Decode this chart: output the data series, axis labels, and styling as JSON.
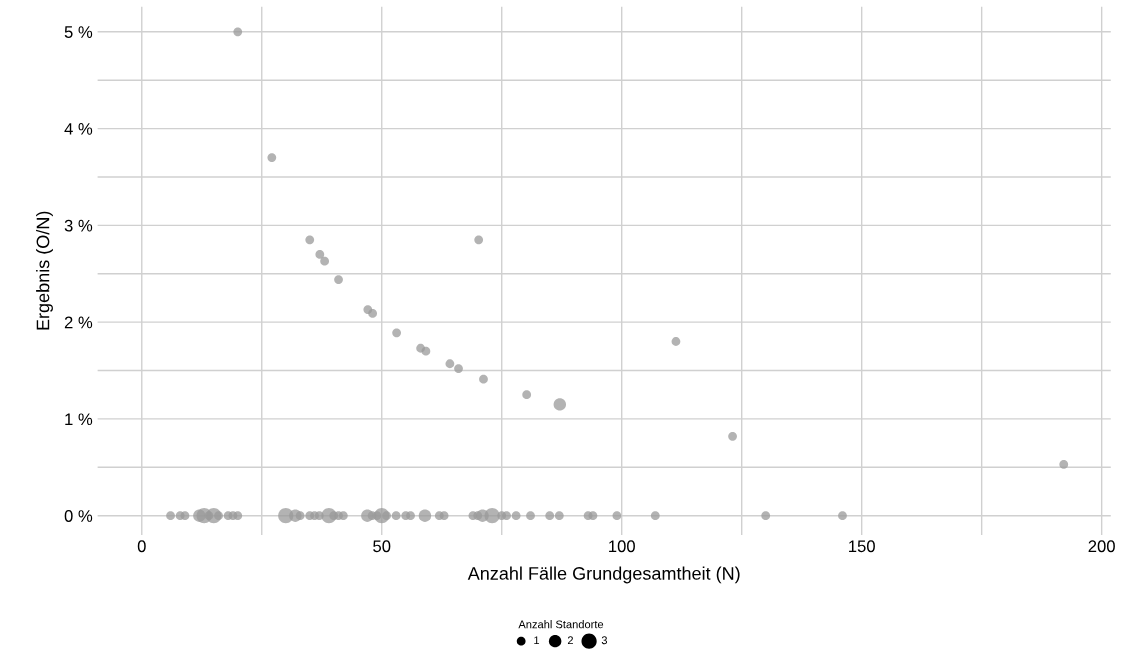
{
  "chart_data": {
    "type": "bubble",
    "xlabel": "Anzahl Fälle Grundgesamtheit (N)",
    "ylabel": "Ergebnis (O/N)",
    "legend_title": "Anzahl Standorte",
    "x": [
      20,
      27.1,
      35,
      37.1,
      38.1,
      41,
      47.1,
      48.1,
      53.1,
      58.1,
      59.2,
      64.2,
      66,
      70.2,
      71.2,
      80.2,
      87.1,
      111.3,
      123.1,
      192.1,
      6,
      8,
      9,
      12,
      13,
      14,
      15,
      16,
      18,
      19,
      20,
      30,
      32,
      33,
      35,
      36,
      37,
      39,
      40,
      41,
      42,
      47,
      48,
      49,
      50,
      51,
      53,
      55,
      56,
      59,
      62,
      63,
      69,
      70,
      71,
      73,
      75,
      76,
      78,
      81,
      85,
      87,
      93,
      94,
      99,
      107,
      130,
      146
    ],
    "values": [
      5.0,
      3.7,
      2.85,
      2.7,
      2.63,
      2.44,
      2.13,
      2.09,
      1.89,
      1.73,
      1.7,
      1.57,
      1.52,
      2.85,
      1.41,
      1.25,
      1.15,
      1.8,
      0.82,
      0.53,
      0,
      0,
      0,
      0,
      0,
      0,
      0,
      0,
      0,
      0,
      0,
      0,
      0,
      0,
      0,
      0,
      0,
      0,
      0,
      0,
      0,
      0,
      0,
      0,
      0,
      0,
      0,
      0,
      0,
      0,
      0,
      0,
      0,
      0,
      0,
      0,
      0,
      0,
      0,
      0,
      0,
      0,
      0,
      0,
      0,
      0,
      0,
      0
    ],
    "sizes": [
      1,
      1,
      1,
      1,
      1,
      1,
      1,
      1,
      1,
      1,
      1,
      1,
      1,
      1,
      1,
      1,
      2,
      1,
      1,
      1,
      1,
      1,
      1,
      2,
      3,
      1,
      3,
      1,
      1,
      1,
      1,
      3,
      2,
      1,
      1,
      1,
      1,
      3,
      1,
      1,
      1,
      2,
      1,
      1,
      3,
      1,
      1,
      1,
      1,
      2,
      1,
      1,
      1,
      1,
      2,
      3,
      1,
      1,
      1,
      1,
      1,
      1,
      1,
      1,
      1,
      1,
      1,
      1
    ],
    "size_legend": [
      1,
      2,
      3
    ],
    "color": "#999999",
    "xlim": [
      -9.2,
      201.9
    ],
    "ylim": [
      -0.2,
      5.26
    ],
    "xticks": [
      0,
      {
        "value": 25,
        "label": null
      },
      50,
      {
        "value": 75,
        "label": null
      },
      100,
      {
        "value": 125,
        "label": null
      },
      150,
      {
        "value": 175,
        "label": null
      },
      200
    ],
    "yticks": [
      {
        "value": 0,
        "label": "0 %"
      },
      {
        "value": 0.5,
        "label": null
      },
      {
        "value": 1,
        "label": "1 %"
      },
      {
        "value": 1.5,
        "label": null
      },
      {
        "value": 2,
        "label": "2 %"
      },
      {
        "value": 2.5,
        "label": null
      },
      {
        "value": 3,
        "label": "3 %"
      },
      {
        "value": 3.5,
        "label": null
      },
      {
        "value": 4,
        "label": "4 %"
      },
      {
        "value": 4.5,
        "label": null
      },
      {
        "value": 5,
        "label": "5 %"
      }
    ],
    "grid": true,
    "marker": "circle"
  }
}
